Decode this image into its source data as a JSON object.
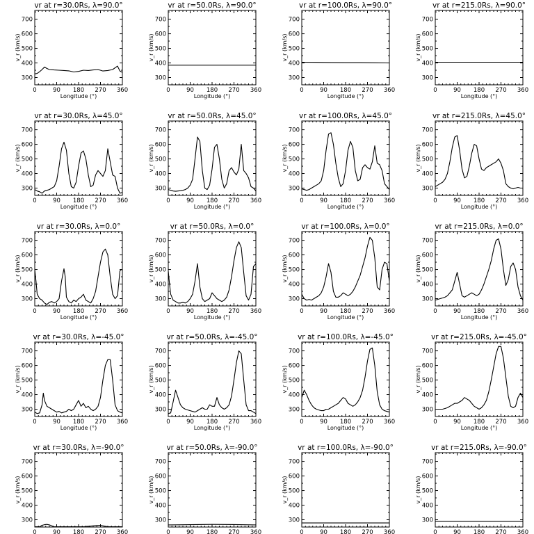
{
  "chart_data": {
    "type": "line",
    "layout": "5x4 grid",
    "xlabel": "Longitude (°)",
    "ylabel": "v_r (km/s)",
    "xlim": [
      0,
      360
    ],
    "ylim": [
      250,
      760
    ],
    "xticks": [
      0,
      90,
      180,
      270,
      360
    ],
    "yticks": [
      300,
      400,
      500,
      600,
      700
    ],
    "panels": [
      {
        "title": "vr at r=30.0Rs, λ=90.0°",
        "x": [
          0,
          10,
          20,
          30,
          40,
          50,
          60,
          80,
          100,
          120,
          140,
          160,
          180,
          200,
          220,
          240,
          260,
          280,
          300,
          320,
          340,
          350,
          360
        ],
        "y": [
          325,
          328,
          340,
          355,
          372,
          362,
          355,
          352,
          350,
          348,
          346,
          338,
          342,
          350,
          348,
          352,
          355,
          345,
          348,
          355,
          378,
          345,
          335
        ]
      },
      {
        "title": "vr at r=50.0Rs, λ=90.0°",
        "x": [
          0,
          360
        ],
        "y": [
          385,
          385
        ]
      },
      {
        "title": "vr at r=100.0Rs, λ=90.0°",
        "x": [
          0,
          60,
          120,
          180,
          240,
          300,
          360
        ],
        "y": [
          405,
          404,
          403,
          402,
          402,
          401,
          400
        ]
      },
      {
        "title": "vr at r=215.0Rs, λ=90.0°",
        "x": [
          0,
          360
        ],
        "y": [
          405,
          405
        ]
      },
      {
        "title": "vr at r=30.0Rs, λ=45.0°",
        "x": [
          0,
          10,
          20,
          30,
          40,
          50,
          60,
          70,
          80,
          90,
          100,
          110,
          120,
          130,
          140,
          150,
          160,
          170,
          180,
          190,
          200,
          210,
          220,
          230,
          240,
          250,
          260,
          270,
          280,
          290,
          300,
          310,
          320,
          330,
          340,
          350,
          360
        ],
        "y": [
          290,
          280,
          275,
          265,
          280,
          285,
          290,
          300,
          310,
          350,
          450,
          570,
          615,
          560,
          400,
          310,
          300,
          340,
          450,
          540,
          555,
          500,
          390,
          310,
          320,
          390,
          420,
          400,
          380,
          420,
          570,
          480,
          390,
          380,
          300,
          265,
          270
        ]
      },
      {
        "title": "vr at r=50.0Rs, λ=45.0°",
        "x": [
          0,
          10,
          20,
          30,
          40,
          50,
          60,
          70,
          80,
          90,
          100,
          110,
          120,
          130,
          140,
          150,
          160,
          170,
          180,
          190,
          200,
          210,
          220,
          230,
          240,
          250,
          260,
          270,
          280,
          290,
          300,
          310,
          320,
          330,
          340,
          350,
          360
        ],
        "y": [
          290,
          285,
          280,
          278,
          280,
          282,
          285,
          290,
          300,
          320,
          360,
          500,
          650,
          620,
          420,
          300,
          290,
          320,
          430,
          580,
          600,
          500,
          360,
          300,
          330,
          420,
          440,
          410,
          390,
          430,
          600,
          420,
          400,
          370,
          310,
          300,
          280
        ]
      },
      {
        "title": "vr at r=100.0Rs, λ=45.0°",
        "x": [
          0,
          10,
          20,
          30,
          40,
          50,
          60,
          70,
          80,
          90,
          100,
          110,
          120,
          130,
          140,
          150,
          160,
          170,
          180,
          190,
          200,
          210,
          220,
          230,
          240,
          250,
          260,
          270,
          280,
          290,
          300,
          310,
          320,
          330,
          340,
          350,
          360
        ],
        "y": [
          295,
          290,
          285,
          290,
          300,
          310,
          320,
          330,
          350,
          420,
          560,
          670,
          680,
          600,
          470,
          370,
          310,
          330,
          420,
          560,
          620,
          580,
          420,
          350,
          360,
          440,
          460,
          440,
          430,
          480,
          590,
          470,
          460,
          420,
          330,
          310,
          290
        ]
      },
      {
        "title": "vr at r=215.0Rs, λ=45.0°",
        "x": [
          0,
          10,
          20,
          30,
          40,
          50,
          60,
          70,
          80,
          90,
          100,
          110,
          120,
          130,
          140,
          150,
          160,
          170,
          180,
          190,
          200,
          210,
          220,
          230,
          240,
          250,
          260,
          270,
          280,
          290,
          300,
          310,
          320,
          330,
          340,
          350,
          360
        ],
        "y": [
          310,
          320,
          330,
          340,
          360,
          400,
          480,
          580,
          650,
          660,
          560,
          430,
          370,
          380,
          450,
          540,
          600,
          590,
          500,
          430,
          420,
          440,
          450,
          460,
          470,
          480,
          500,
          470,
          420,
          330,
          310,
          300,
          295,
          300,
          305,
          300,
          300
        ]
      },
      {
        "title": "vr at r=30.0Rs, λ=0.0°",
        "x": [
          0,
          5,
          10,
          20,
          30,
          40,
          50,
          60,
          70,
          80,
          90,
          100,
          110,
          120,
          125,
          130,
          140,
          150,
          160,
          170,
          180,
          190,
          200,
          210,
          220,
          230,
          240,
          250,
          260,
          270,
          280,
          290,
          300,
          310,
          320,
          330,
          340,
          350,
          355,
          360
        ],
        "y": [
          500,
          420,
          330,
          300,
          290,
          270,
          260,
          275,
          280,
          270,
          280,
          300,
          420,
          505,
          450,
          310,
          280,
          270,
          290,
          280,
          300,
          310,
          330,
          290,
          280,
          270,
          300,
          350,
          450,
          550,
          620,
          640,
          600,
          450,
          330,
          300,
          320,
          490,
          500,
          495
        ]
      },
      {
        "title": "vr at r=50.0Rs, λ=0.0°",
        "x": [
          0,
          5,
          10,
          20,
          30,
          40,
          50,
          60,
          70,
          80,
          90,
          100,
          110,
          120,
          130,
          140,
          150,
          160,
          170,
          180,
          190,
          200,
          210,
          220,
          230,
          240,
          250,
          260,
          270,
          280,
          290,
          300,
          310,
          320,
          330,
          340,
          350,
          360
        ],
        "y": [
          490,
          400,
          330,
          290,
          280,
          270,
          270,
          275,
          270,
          280,
          300,
          330,
          420,
          540,
          380,
          300,
          280,
          290,
          300,
          340,
          320,
          300,
          290,
          280,
          290,
          310,
          360,
          450,
          560,
          650,
          690,
          650,
          480,
          320,
          290,
          330,
          520,
          540
        ]
      },
      {
        "title": "vr at r=100.0Rs, λ=0.0°",
        "x": [
          0,
          10,
          20,
          30,
          40,
          50,
          60,
          70,
          80,
          90,
          100,
          110,
          120,
          130,
          140,
          150,
          160,
          170,
          180,
          190,
          200,
          210,
          220,
          230,
          240,
          250,
          260,
          270,
          280,
          290,
          300,
          310,
          320,
          330,
          340,
          350,
          360
        ],
        "y": [
          330,
          300,
          290,
          295,
          290,
          300,
          310,
          320,
          340,
          380,
          450,
          540,
          480,
          350,
          310,
          310,
          320,
          340,
          330,
          320,
          330,
          350,
          380,
          420,
          460,
          520,
          580,
          660,
          720,
          700,
          580,
          380,
          360,
          500,
          550,
          540,
          420
        ]
      },
      {
        "title": "vr at r=215.0Rs, λ=0.0°",
        "x": [
          0,
          10,
          20,
          30,
          40,
          50,
          60,
          70,
          80,
          90,
          100,
          110,
          120,
          130,
          140,
          150,
          160,
          170,
          180,
          190,
          200,
          210,
          220,
          230,
          240,
          250,
          260,
          270,
          280,
          290,
          300,
          310,
          320,
          330,
          340,
          350,
          360
        ],
        "y": [
          290,
          295,
          300,
          305,
          310,
          320,
          340,
          360,
          420,
          480,
          400,
          320,
          310,
          320,
          330,
          340,
          330,
          320,
          330,
          360,
          400,
          450,
          500,
          560,
          640,
          700,
          710,
          640,
          500,
          390,
          430,
          520,
          545,
          500,
          380,
          320,
          290
        ]
      },
      {
        "title": "vr at r=30.0Rs, λ=-45.0°",
        "x": [
          0,
          10,
          20,
          30,
          35,
          40,
          50,
          60,
          70,
          80,
          90,
          100,
          110,
          120,
          130,
          140,
          150,
          160,
          170,
          180,
          190,
          200,
          210,
          220,
          230,
          240,
          250,
          260,
          270,
          280,
          290,
          300,
          310,
          320,
          330,
          340,
          350,
          360
        ],
        "y": [
          280,
          270,
          275,
          330,
          410,
          360,
          320,
          310,
          300,
          290,
          280,
          285,
          275,
          280,
          285,
          300,
          290,
          300,
          330,
          360,
          320,
          340,
          310,
          320,
          300,
          290,
          300,
          320,
          380,
          500,
          600,
          640,
          640,
          500,
          330,
          290,
          280,
          275
        ]
      },
      {
        "title": "vr at r=50.0Rs, λ=-45.0°",
        "x": [
          0,
          10,
          20,
          30,
          40,
          50,
          60,
          70,
          80,
          90,
          100,
          110,
          120,
          130,
          140,
          150,
          160,
          170,
          180,
          190,
          200,
          210,
          220,
          230,
          240,
          250,
          260,
          270,
          280,
          290,
          300,
          310,
          320,
          330,
          340,
          350,
          360
        ],
        "y": [
          270,
          275,
          350,
          430,
          380,
          330,
          310,
          300,
          295,
          290,
          285,
          280,
          290,
          300,
          310,
          300,
          300,
          330,
          320,
          320,
          380,
          330,
          310,
          300,
          310,
          330,
          390,
          500,
          620,
          700,
          680,
          500,
          330,
          290,
          290,
          280,
          270
        ]
      },
      {
        "title": "vr at r=100.0Rs, λ=-45.0°",
        "x": [
          0,
          10,
          20,
          30,
          40,
          50,
          60,
          70,
          80,
          90,
          100,
          110,
          120,
          130,
          140,
          150,
          160,
          170,
          180,
          190,
          200,
          210,
          220,
          230,
          240,
          250,
          260,
          270,
          280,
          290,
          300,
          310,
          320,
          330,
          340,
          350,
          360
        ],
        "y": [
          380,
          430,
          400,
          360,
          330,
          310,
          300,
          295,
          290,
          290,
          300,
          300,
          310,
          320,
          330,
          340,
          360,
          380,
          370,
          340,
          330,
          320,
          330,
          350,
          380,
          430,
          520,
          630,
          710,
          720,
          600,
          420,
          330,
          300,
          290,
          285,
          280
        ]
      },
      {
        "title": "vr at r=215.0Rs, λ=-45.0°",
        "x": [
          0,
          10,
          20,
          30,
          40,
          50,
          60,
          70,
          80,
          90,
          100,
          110,
          120,
          130,
          140,
          150,
          160,
          170,
          180,
          190,
          200,
          210,
          220,
          230,
          240,
          250,
          260,
          270,
          280,
          290,
          300,
          310,
          320,
          330,
          340,
          350,
          360
        ],
        "y": [
          300,
          300,
          300,
          300,
          305,
          310,
          320,
          330,
          340,
          340,
          350,
          360,
          380,
          370,
          360,
          340,
          320,
          310,
          300,
          310,
          330,
          360,
          420,
          500,
          590,
          680,
          730,
          730,
          650,
          520,
          390,
          320,
          310,
          320,
          380,
          410,
          380
        ]
      },
      {
        "title": "vr at r=30.0Rs, λ=-90.0°",
        "x": [
          0,
          10,
          20,
          30,
          40,
          50,
          60,
          70,
          80,
          100,
          150,
          200,
          250,
          270,
          300,
          360
        ],
        "y": [
          252,
          252,
          252,
          262,
          266,
          268,
          265,
          258,
          252,
          252,
          252,
          252,
          260,
          262,
          252,
          252
        ]
      },
      {
        "title": "vr at r=50.0Rs, λ=-90.0°",
        "x": [
          0,
          90,
          180,
          270,
          360
        ],
        "y": [
          265,
          266,
          268,
          267,
          265
        ]
      },
      {
        "title": "vr at r=100.0Rs, λ=-90.0°",
        "x": [
          0,
          360
        ],
        "y": [
          278,
          278
        ]
      },
      {
        "title": "vr at r=215.0Rs, λ=-90.0°",
        "x": [
          0,
          360
        ],
        "y": [
          290,
          290
        ]
      }
    ]
  }
}
